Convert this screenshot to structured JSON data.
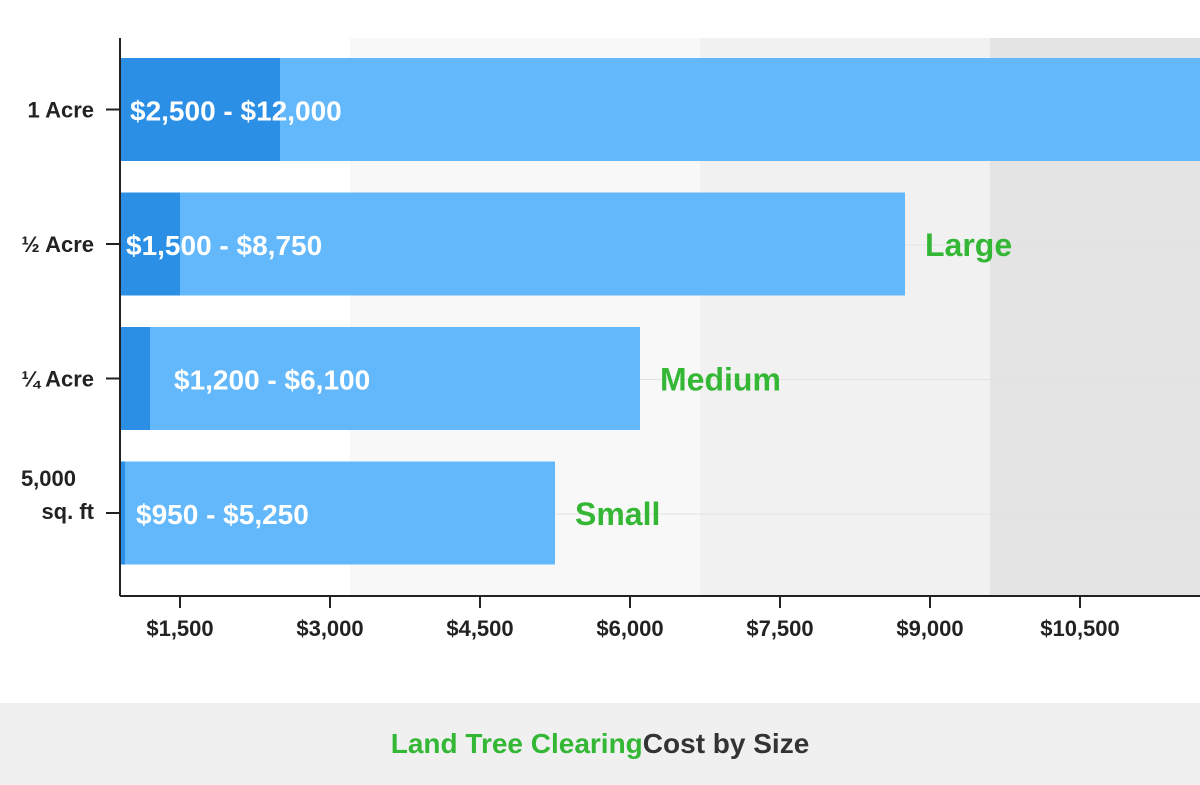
{
  "chart_data": {
    "type": "bar",
    "orientation": "horizontal",
    "categories": [
      "1 Acre",
      "½ Acre",
      "¼ Acre",
      "5,000 sq. ft"
    ],
    "category_lines": [
      [
        "1 Acre"
      ],
      [
        "½ Acre"
      ],
      [
        "¼ Acre"
      ],
      [
        "5,000",
        "sq. ft"
      ]
    ],
    "series": [
      {
        "name": "low",
        "values": [
          2500,
          1500,
          1200,
          950
        ]
      },
      {
        "name": "high",
        "values": [
          12000,
          8750,
          6100,
          5250
        ]
      }
    ],
    "range_labels": [
      "$2,500 - $12,000",
      "$1,500 - $8,750",
      "$1,200 - $6,100",
      "$950 - $5,250"
    ],
    "size_labels": [
      "",
      "Large",
      "Medium",
      "Small"
    ],
    "x_ticks": [
      1500,
      3000,
      4500,
      6000,
      7500,
      9000,
      10500
    ],
    "x_tick_labels": [
      "$1,500",
      "$3,000",
      "$4,500",
      "$6,000",
      "$7,500",
      "$9,000",
      "$10,500"
    ],
    "xlim": [
      900,
      11700
    ],
    "background_bands": [
      {
        "from": 900,
        "to": 3200,
        "color": "#ffffff"
      },
      {
        "from": 3200,
        "to": 6700,
        "color": "#f8f8f8"
      },
      {
        "from": 6700,
        "to": 9600,
        "color": "#f1f1f1"
      },
      {
        "from": 9600,
        "to": 11700,
        "color": "#e4e4e4"
      }
    ],
    "grid": "horizontal",
    "colors": {
      "low": "#2b8fe6",
      "high": "#62b8fa",
      "size_label": "#35b736",
      "axis": "#222222"
    }
  },
  "title": {
    "highlight": "Land Tree Clearing",
    "rest": " Cost by Size"
  }
}
